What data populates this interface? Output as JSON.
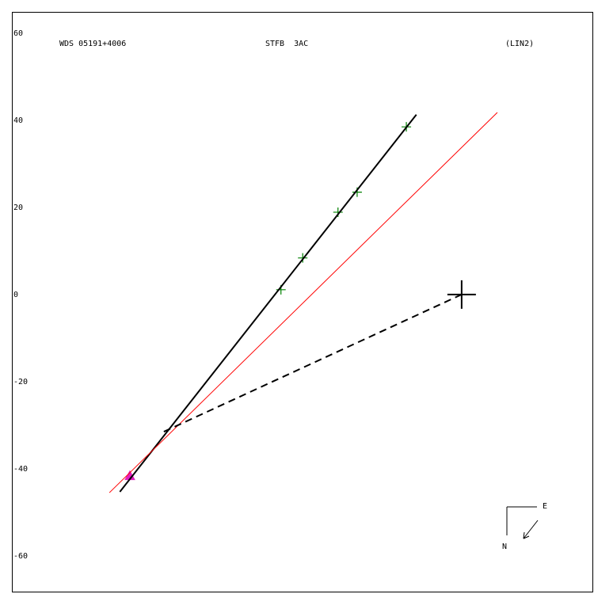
{
  "chart_data": {
    "type": "scatter",
    "title": "WDS 05191+4006",
    "subtitle": "STFB  3AC",
    "annotation": "(LIN2)",
    "compass": {
      "east": "E",
      "north": "N"
    },
    "xlim": [
      -103.3,
      30.4
    ],
    "ylim": [
      -68.4,
      64.9
    ],
    "yticks": [
      -60,
      -40,
      -20,
      0,
      20,
      40,
      60
    ],
    "series": [
      {
        "color": "#008000",
        "marker": "plus",
        "x": [
          -41.5,
          -36.5,
          -28.4,
          -24.0,
          -12.7
        ],
        "y": [
          1.1,
          8.4,
          18.9,
          23.5,
          38.5
        ]
      },
      {
        "color": "#e020c0",
        "marker": "triangle",
        "x": [
          -76.2
        ],
        "y": [
          -41.6
        ]
      },
      {
        "color": "#000000",
        "line_style": "solid",
        "x": [
          -78.5,
          -10.4
        ],
        "y": [
          -45.3,
          41.3
        ]
      },
      {
        "color": "#ff0000",
        "line_style": "thin",
        "x": [
          -80.9,
          8.2
        ],
        "y": [
          -45.5,
          41.8
        ]
      },
      {
        "color": "#000000",
        "line_style": "dashed",
        "x": [
          -68.4,
          0
        ],
        "y": [
          -31.5,
          0
        ]
      }
    ],
    "primary": {
      "color": "#000000",
      "x": 0,
      "y": 0
    }
  }
}
